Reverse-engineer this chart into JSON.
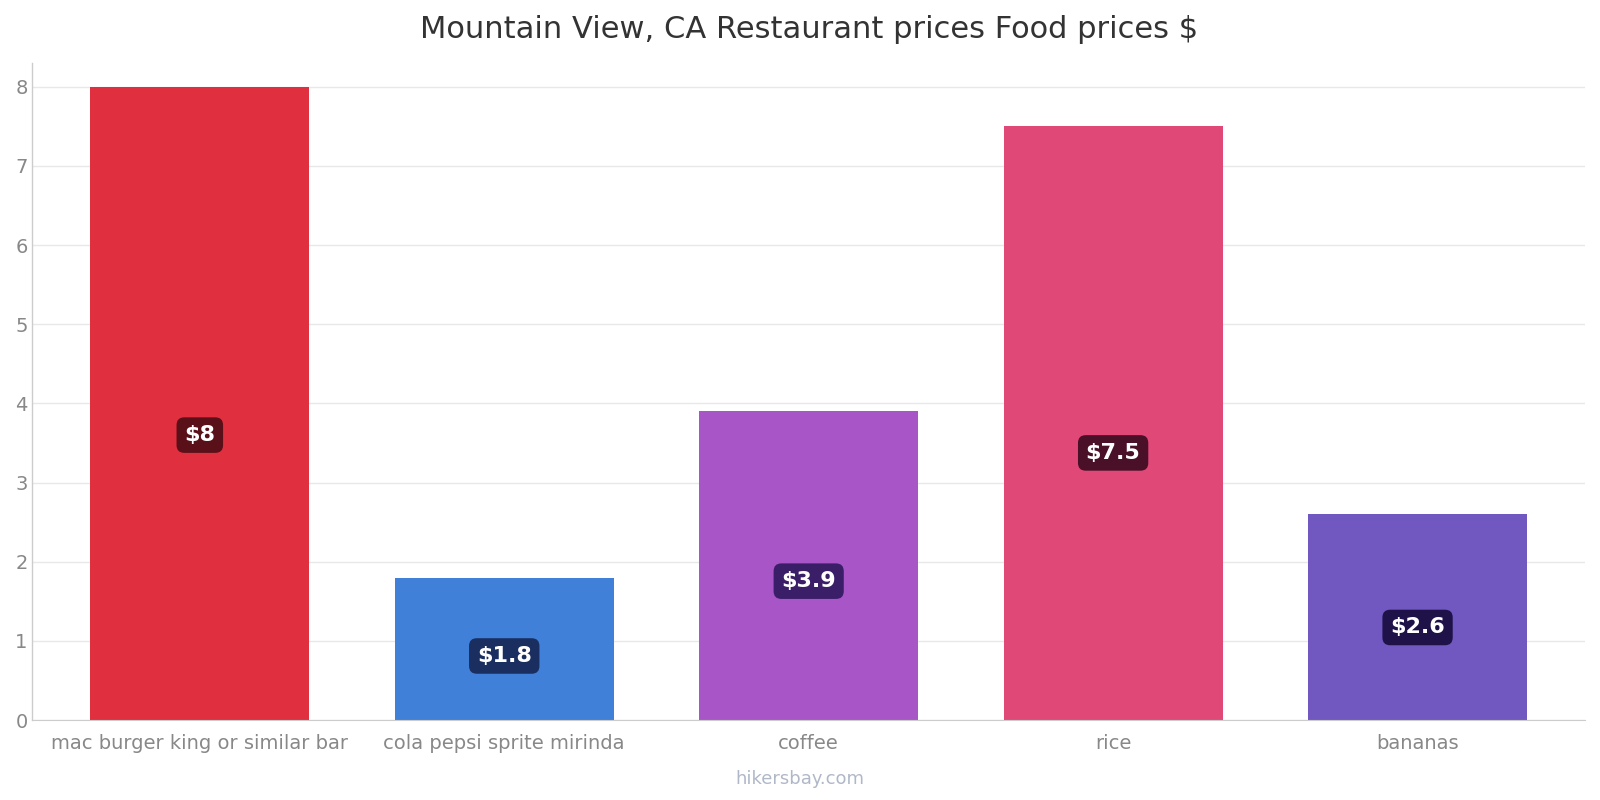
{
  "title": "Mountain View, CA Restaurant prices Food prices $",
  "categories": [
    "mac burger king or similar bar",
    "cola pepsi sprite mirinda",
    "coffee",
    "rice",
    "bananas"
  ],
  "values": [
    8.0,
    1.8,
    3.9,
    7.5,
    2.6
  ],
  "labels": [
    "$8",
    "$1.8",
    "$3.9",
    "$7.5",
    "$2.6"
  ],
  "bar_colors": [
    "#e03040",
    "#4080d8",
    "#a855c8",
    "#e04878",
    "#7058c0"
  ],
  "label_box_colors": [
    "#5a1018",
    "#1a2f60",
    "#3a1f68",
    "#4a1028",
    "#1e1248"
  ],
  "ylim": [
    0,
    8.3
  ],
  "yticks": [
    0,
    1,
    2,
    3,
    4,
    5,
    6,
    7,
    8
  ],
  "title_fontsize": 22,
  "tick_fontsize": 14,
  "label_fontsize": 16,
  "watermark": "hikersbay.com",
  "background_color": "#ffffff",
  "bar_width": 0.72
}
